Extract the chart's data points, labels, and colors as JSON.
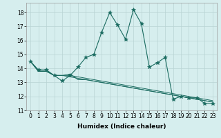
{
  "title": "",
  "xlabel": "Humidex (Indice chaleur)",
  "ylabel": "",
  "bg_color": "#d6eeee",
  "grid_color": "#b8d4d4",
  "line_color": "#1a6b60",
  "marker": "*",
  "markersize": 4,
  "xlim": [
    -0.5,
    23.5
  ],
  "ylim": [
    11,
    18.7
  ],
  "yticks": [
    11,
    12,
    13,
    14,
    15,
    16,
    17,
    18
  ],
  "xticks": [
    0,
    1,
    2,
    3,
    4,
    5,
    6,
    7,
    8,
    9,
    10,
    11,
    12,
    13,
    14,
    15,
    16,
    17,
    18,
    19,
    20,
    21,
    22,
    23
  ],
  "series1": [
    14.5,
    13.9,
    13.9,
    13.5,
    13.1,
    13.5,
    14.1,
    14.8,
    15.0,
    16.6,
    18.0,
    17.1,
    16.1,
    18.2,
    17.2,
    14.1,
    14.4,
    14.8,
    11.8,
    12.0,
    11.9,
    11.9,
    11.5,
    11.5
  ],
  "series2": [
    14.5,
    13.8,
    13.8,
    13.5,
    13.5,
    13.6,
    13.2,
    13.2,
    13.1,
    13.0,
    12.9,
    12.8,
    12.7,
    12.6,
    12.5,
    12.4,
    12.3,
    12.2,
    12.1,
    12.0,
    11.9,
    11.8,
    11.7,
    11.6
  ],
  "series3": [
    14.5,
    13.8,
    13.8,
    13.5,
    13.5,
    13.5,
    13.4,
    13.3,
    13.2,
    13.1,
    13.0,
    12.9,
    12.8,
    12.7,
    12.6,
    12.5,
    12.4,
    12.3,
    12.2,
    12.1,
    12.0,
    11.9,
    11.8,
    11.7
  ],
  "series4": [
    14.5,
    13.8,
    13.8,
    13.5,
    13.5,
    13.4,
    13.3,
    13.2,
    13.1,
    13.0,
    12.9,
    12.8,
    12.7,
    12.6,
    12.5,
    12.4,
    12.3,
    12.2,
    12.1,
    12.0,
    11.9,
    11.8,
    11.7,
    11.6
  ],
  "tick_fontsize": 5.5,
  "xlabel_fontsize": 6.5
}
